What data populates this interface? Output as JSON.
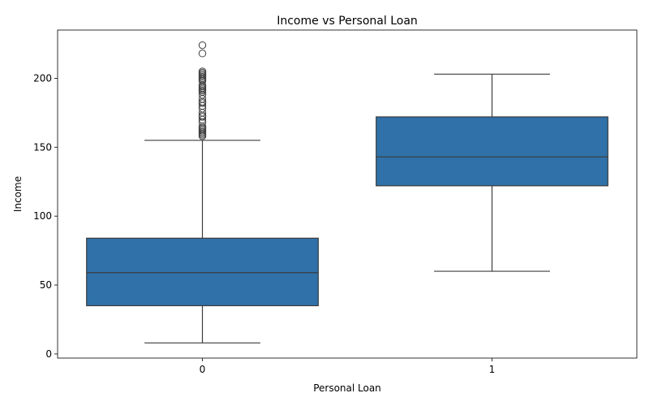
{
  "chart_data": {
    "type": "box",
    "title": "Income vs Personal Loan",
    "xlabel": "Personal Loan",
    "ylabel": "Income",
    "categories": [
      "0",
      "1"
    ],
    "yticks": [
      0,
      50,
      100,
      150,
      200
    ],
    "ylim": [
      -3,
      235
    ],
    "grid": false,
    "box_color": "#2f71a8",
    "line_color": "#3d3d3d",
    "boxes": [
      {
        "category": "0",
        "whisker_low": 8,
        "q1": 35,
        "median": 59,
        "q3": 84,
        "whisker_high": 155,
        "outliers": [
          158,
          159,
          160,
          161,
          162,
          163,
          164,
          165,
          168,
          170,
          172,
          173,
          175,
          178,
          180,
          182,
          183,
          185,
          188,
          190,
          191,
          192,
          193,
          194,
          195,
          198,
          199,
          200,
          201,
          202,
          203,
          204,
          205,
          218,
          224
        ]
      },
      {
        "category": "1",
        "whisker_low": 60,
        "q1": 122,
        "median": 143,
        "q3": 172,
        "whisker_high": 203,
        "outliers": []
      }
    ]
  }
}
